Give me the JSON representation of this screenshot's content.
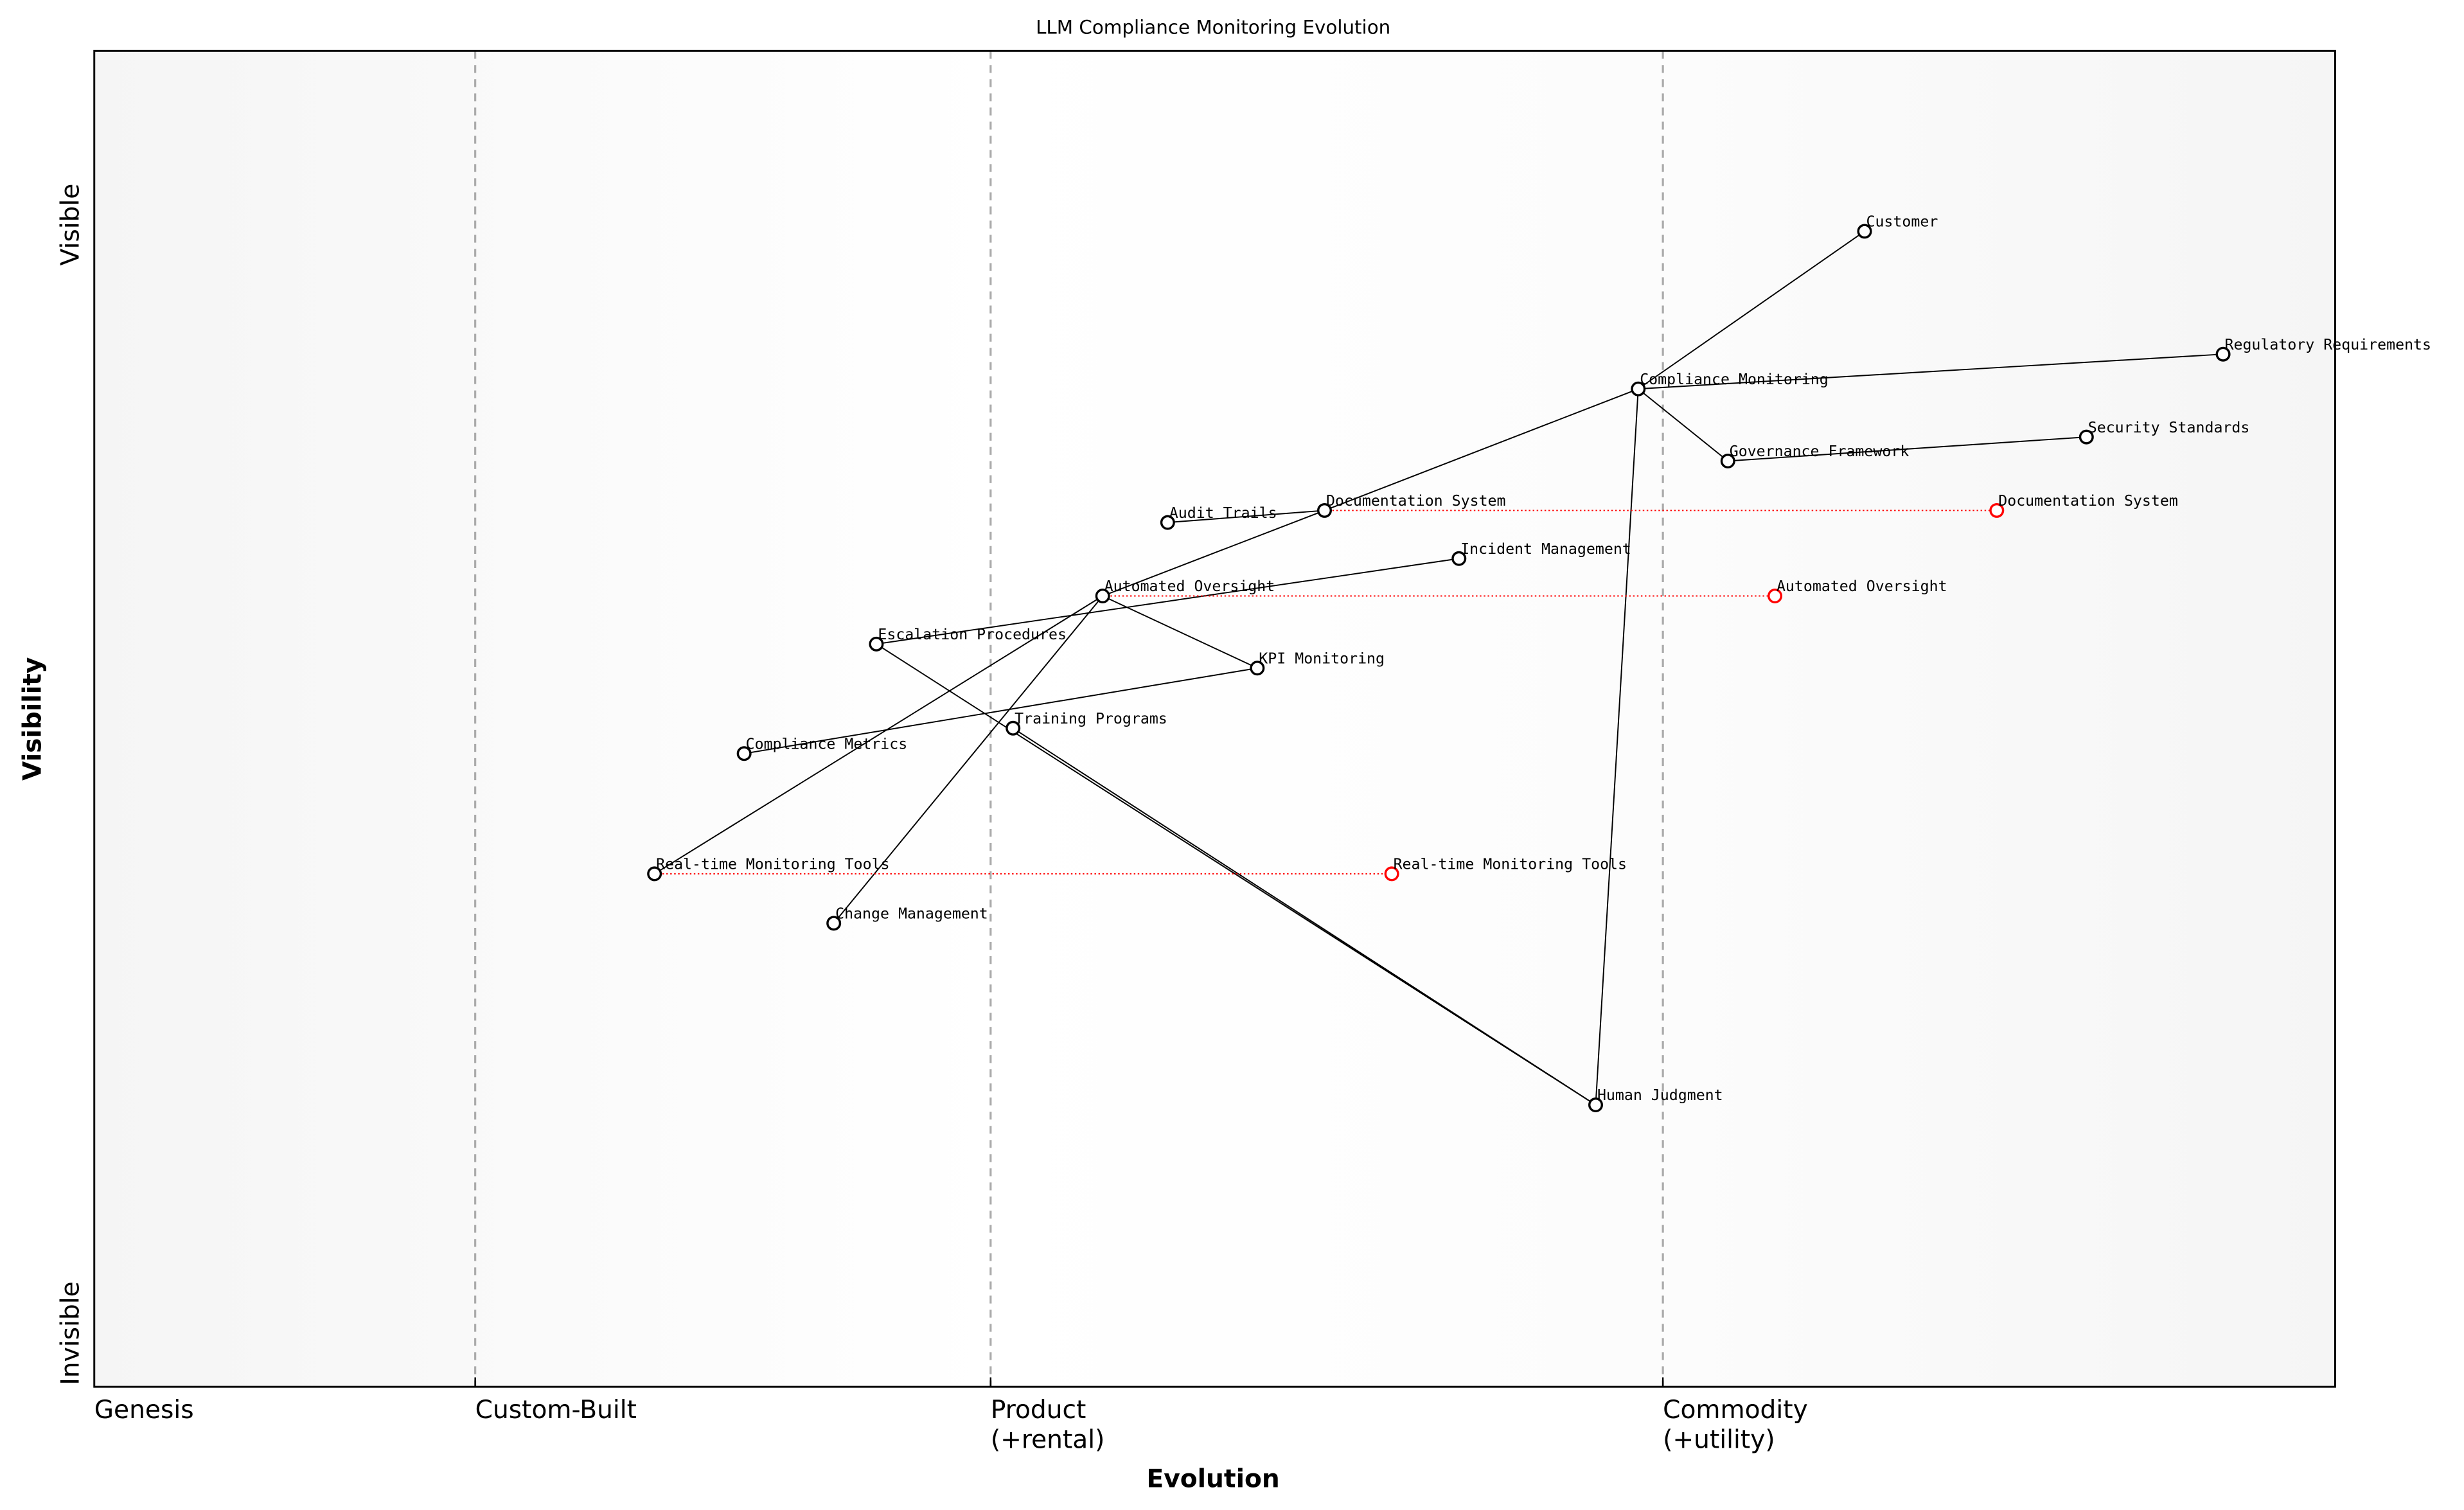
{
  "chart_data": {
    "type": "scatter",
    "title": "LLM Compliance Monitoring Evolution",
    "xlabel": "Evolution",
    "ylabel": "Visibility",
    "xlim": [
      0,
      1
    ],
    "ylim": [
      0,
      1
    ],
    "grid": false,
    "x_stages": [
      {
        "label": "Genesis",
        "x": 0.0
      },
      {
        "label": "Custom-Built",
        "x": 0.17
      },
      {
        "label": "Product\n(+rental)",
        "x": 0.4
      },
      {
        "label": "Commodity\n(+utility)",
        "x": 0.7
      }
    ],
    "y_ticks": [
      {
        "label": "Visible",
        "y": 0.87
      },
      {
        "label": "Invisible",
        "y": 0.04
      }
    ],
    "colors": {
      "node": "#000000",
      "evolution": "#ff0000",
      "stage_line": "#aaaaaa",
      "background_edge": "#f5f5f5"
    },
    "components": [
      {
        "name": "Customer",
        "x": 0.79,
        "y": 0.865
      },
      {
        "name": "Regulatory Requirements",
        "x": 0.95,
        "y": 0.773
      },
      {
        "name": "Compliance Monitoring",
        "x": 0.689,
        "y": 0.747
      },
      {
        "name": "Security Standards",
        "x": 0.889,
        "y": 0.711
      },
      {
        "name": "Governance Framework",
        "x": 0.729,
        "y": 0.693
      },
      {
        "name": "Documentation System",
        "x": 0.549,
        "y": 0.656
      },
      {
        "name": "Audit Trails",
        "x": 0.479,
        "y": 0.647
      },
      {
        "name": "Incident Management",
        "x": 0.609,
        "y": 0.62
      },
      {
        "name": "Automated Oversight",
        "x": 0.45,
        "y": 0.592
      },
      {
        "name": "Escalation Procedures",
        "x": 0.349,
        "y": 0.556
      },
      {
        "name": "KPI Monitoring",
        "x": 0.519,
        "y": 0.538
      },
      {
        "name": "Training Programs",
        "x": 0.41,
        "y": 0.493
      },
      {
        "name": "Compliance Metrics",
        "x": 0.29,
        "y": 0.474
      },
      {
        "name": "Real-time Monitoring Tools",
        "x": 0.25,
        "y": 0.384
      },
      {
        "name": "Change Management",
        "x": 0.33,
        "y": 0.347
      },
      {
        "name": "Human Judgment",
        "x": 0.67,
        "y": 0.211
      }
    ],
    "links": [
      [
        "Customer",
        "Compliance Monitoring"
      ],
      [
        "Compliance Monitoring",
        "Regulatory Requirements"
      ],
      [
        "Compliance Monitoring",
        "Governance Framework"
      ],
      [
        "Governance Framework",
        "Security Standards"
      ],
      [
        "Compliance Monitoring",
        "Documentation System"
      ],
      [
        "Compliance Monitoring",
        "Human Judgment"
      ],
      [
        "Documentation System",
        "Audit Trails"
      ],
      [
        "Documentation System",
        "Automated Oversight"
      ],
      [
        "Incident Management",
        "Escalation Procedures"
      ],
      [
        "Automated Oversight",
        "KPI Monitoring"
      ],
      [
        "Automated Oversight",
        "Real-time Monitoring Tools"
      ],
      [
        "Automated Oversight",
        "Change Management"
      ],
      [
        "Escalation Procedures",
        "Human Judgment"
      ],
      [
        "Training Programs",
        "Human Judgment"
      ],
      [
        "KPI Monitoring",
        "Compliance Metrics"
      ]
    ],
    "evolutions": [
      {
        "name": "Documentation System",
        "from_x": 0.549,
        "to_x": 0.849,
        "y": 0.656
      },
      {
        "name": "Automated Oversight",
        "from_x": 0.45,
        "to_x": 0.75,
        "y": 0.592
      },
      {
        "name": "Real-time Monitoring Tools",
        "from_x": 0.25,
        "to_x": 0.579,
        "y": 0.384
      }
    ]
  }
}
